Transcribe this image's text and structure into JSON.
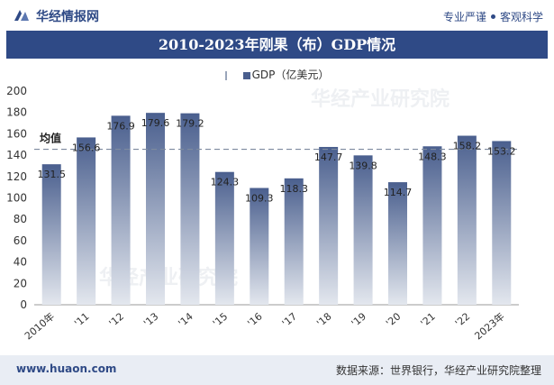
{
  "header": {
    "brand": "华经情报网",
    "slogan_left": "专业严谨",
    "slogan_right": "客观科学"
  },
  "title": "2010-2023年刚果（布）GDP情况",
  "legend": {
    "avg_label": "",
    "series_label": "GDP（亿美元）"
  },
  "footer": {
    "site": "www.huaon.com",
    "source": "数据来源：世界银行，华经产业研究院整理"
  },
  "watermark": "华经产业研究院",
  "colors": {
    "brand": "#2f4a86",
    "bar_top": "#4a5f8e",
    "bar_bottom": "#e3e7ee",
    "avg_line": "#7d8a9e"
  },
  "chart_data": {
    "type": "bar",
    "categories": [
      "2010年",
      "'11",
      "'12",
      "'13",
      "'14",
      "'15",
      "'16",
      "'17",
      "'18",
      "'19",
      "'20",
      "'21",
      "'22",
      "2023年"
    ],
    "series": [
      {
        "name": "GDP（亿美元）",
        "values": [
          131.5,
          156.6,
          176.9,
          179.6,
          179.2,
          124.3,
          109.3,
          118.3,
          147.7,
          139.8,
          114.7,
          148.3,
          158.2,
          153.2
        ]
      }
    ],
    "average": {
      "label": "均值",
      "value": 145.5
    },
    "ylim": [
      0,
      200
    ],
    "yticks": [
      0,
      20,
      40,
      60,
      80,
      100,
      120,
      140,
      160,
      180,
      200
    ],
    "xlabel": "",
    "ylabel": "",
    "grid": false,
    "legend_position": "top-center"
  }
}
